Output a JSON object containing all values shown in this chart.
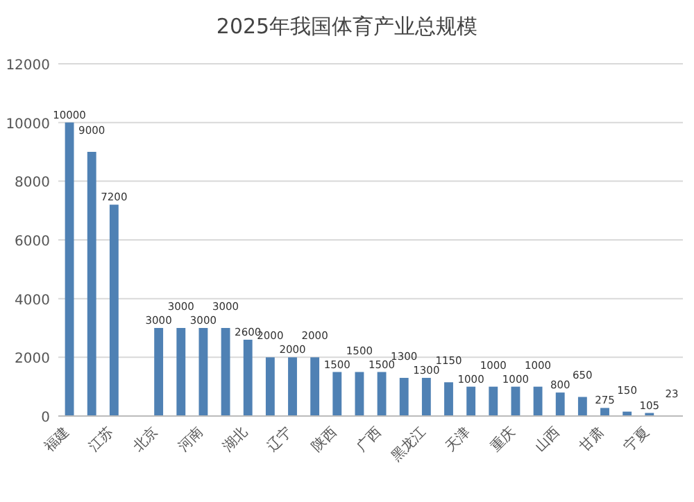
{
  "chart_data": {
    "type": "bar",
    "title": "2025年我国体育产业总规模",
    "categories": [
      "福建",
      null,
      "江苏",
      null,
      "北京",
      null,
      "河南",
      null,
      "湖北",
      null,
      "辽宁",
      null,
      "陕西",
      null,
      "广西",
      null,
      "黑龙江",
      null,
      "天津",
      null,
      "重庆",
      null,
      "山西",
      null,
      "甘肃",
      null,
      "宁夏",
      null
    ],
    "values": [
      10000,
      9000,
      7200,
      null,
      3000,
      3000,
      3000,
      3000,
      2600,
      2000,
      2000,
      2000,
      1500,
      1500,
      1500,
      1300,
      1300,
      1150,
      1000,
      1000,
      1000,
      1000,
      800,
      650,
      275,
      150,
      105,
      23
    ],
    "color": "#4f81b4",
    "ylim": [
      0,
      12000
    ],
    "yticks": [
      0,
      2000,
      4000,
      6000,
      8000,
      10000,
      12000
    ],
    "grid": "y",
    "data_labels": true
  }
}
